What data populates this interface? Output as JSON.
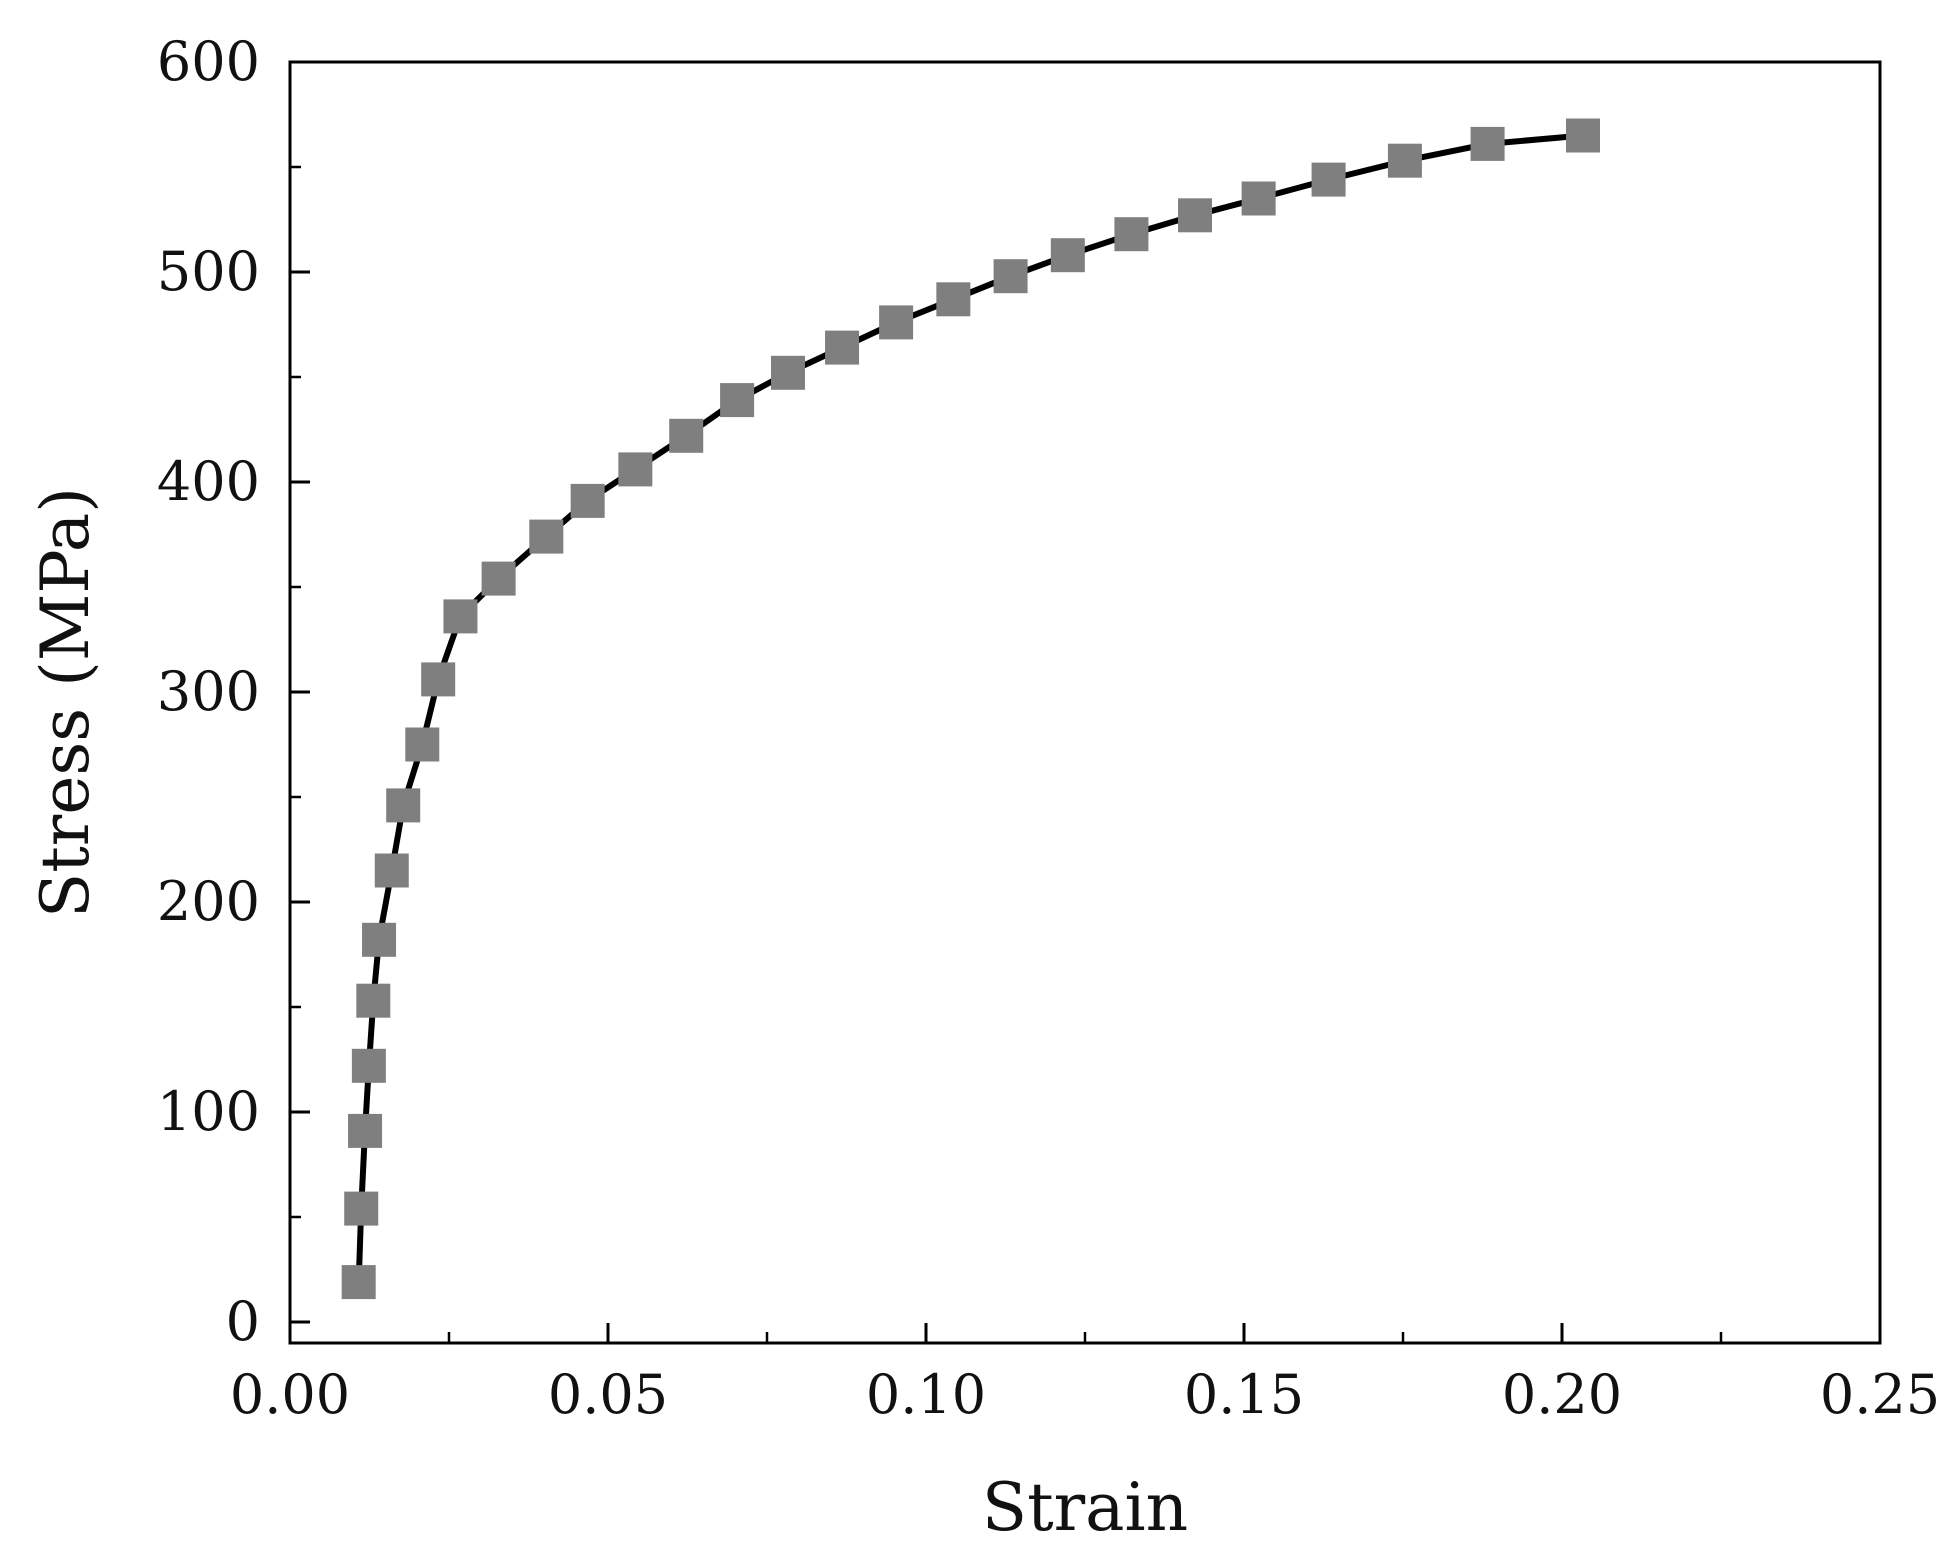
{
  "chart_data": {
    "type": "line",
    "title": "",
    "xlabel": "Strain",
    "ylabel": "Stress (MPa)",
    "xlim": [
      0.0,
      0.25
    ],
    "ylim": [
      -10,
      600
    ],
    "x_ticks": [
      "0.00",
      "0.05",
      "0.10",
      "0.15",
      "0.20",
      "0.25"
    ],
    "x_tick_values": [
      0.0,
      0.05,
      0.1,
      0.15,
      0.2,
      0.25
    ],
    "x_minor_ticks": [
      0.025,
      0.075,
      0.125,
      0.175,
      0.225
    ],
    "y_ticks": [
      "0",
      "100",
      "200",
      "300",
      "400",
      "500",
      "600"
    ],
    "y_tick_values": [
      0,
      100,
      200,
      300,
      400,
      500,
      600
    ],
    "y_minor_ticks": [
      50,
      150,
      250,
      350,
      450,
      550
    ],
    "grid": false,
    "legend": "none",
    "series": [
      {
        "line_color": "#000000",
        "marker": "square",
        "marker_color": "#7f7f7f",
        "x": [
          0.0108,
          0.0112,
          0.0118,
          0.0124,
          0.0131,
          0.014,
          0.016,
          0.0178,
          0.0208,
          0.0233,
          0.0268,
          0.0328,
          0.0403,
          0.0468,
          0.0543,
          0.0623,
          0.0703,
          0.0783,
          0.0868,
          0.0953,
          0.1043,
          0.1133,
          0.1223,
          0.1323,
          0.1423,
          0.1523,
          0.1633,
          0.1753,
          0.1883,
          0.2033
        ],
        "y": [
          19,
          54,
          91,
          122,
          153,
          182,
          215,
          246,
          275,
          306,
          336,
          354,
          374,
          391,
          406,
          422,
          439,
          452,
          464,
          476,
          487,
          498,
          508,
          518,
          527,
          535,
          544,
          553,
          561,
          565
        ]
      }
    ]
  }
}
